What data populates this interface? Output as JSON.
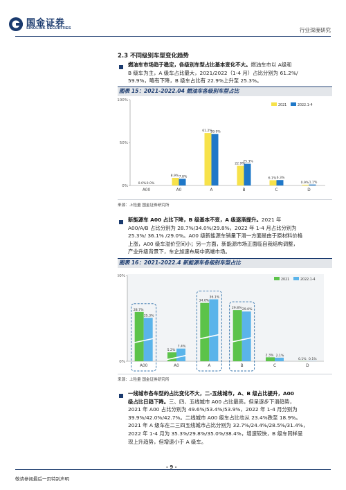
{
  "header": {
    "brand_cn": "国金证券",
    "brand_en": "SINOLINK SECURITIES",
    "report_type": "行业深度研究"
  },
  "section": {
    "title": "2.3 不同级别车型变化趋势"
  },
  "para1": {
    "bold": "燃油车市场趋于稳定，各级别车型占比基本变化不大。",
    "line1_rest": "燃油车市以 A级和",
    "line2": "B 级车为主，A 级车占比最大，2021/2022（1-4 月）占比分别为 61.2%/",
    "line3": "59.9%，略有下降，B 级车占比有 22.9%上升至 25.3%。"
  },
  "figure15": {
    "title": "图表 15：2021-2022.04 燃油车各级别车型占比",
    "source": "来源：上险量 国金证券研究所"
  },
  "para2": {
    "line1_bold": "新能源车 A00 占比下降，B 级基本不变，A 级逐渐提升。",
    "line1_rest": "2021 年",
    "line2": "A00/A/B 占比分别为 28.7%/34.0%/29.8%，2022 年 1-4 月占比分别为",
    "line3": "25.3%/ 36.1% /29.0%。A00 级新能源车销量下滑一方面是由于原材料价格",
    "line4": "上涨，A00 级车溢价空间小；另一方面，新能源市场正面临自我结构调整，",
    "line5": "产业升级背景下，车企加速布局中高端市场。"
  },
  "figure16": {
    "title": "图表 16：2021-2022.4 新能源车各级别车型占比",
    "source": "来源：上险量 国金证券研究所"
  },
  "para3": {
    "line1_bold": "一线城市各车型的占比变化不大，二-五线城市，A、B 级占比提升，A00",
    "line2_bold": "级占比日趋下降。",
    "line2_rest": "三、四、五线城市 A00 占比最高，但呈逐步下滑趋势，",
    "line3": "2021 年 A00 占比分别为 49.6%/53.4%/53.9%，2022 年 1-4 月分别为",
    "line4": "39.9%/42.0%/42.7%。二线城市 A00 级车占比也从 23.4%跌至 18.9%。",
    "line5": "2021 年 A 级车在二三四五线城市占比分别为 32.7%/24.4%/28.5%/31.4%，",
    "line6": "2022 年 1-4 月为 35.3%/29.8%/35.0%/38.4%，增速较快，B 级车同样呈",
    "line7": "现上升趋势，但增速小于 A 级车。"
  },
  "footer": {
    "disclaimer": "敬请参阅最后一页特别声明",
    "page": "- 9 -"
  },
  "chart_data": [
    {
      "type": "bar",
      "categories": [
        "A00",
        "A0",
        "A",
        "B",
        "C",
        "D"
      ],
      "series": [
        {
          "name": "2021",
          "values": [
            0.0,
            8.9,
            61.2,
            22.9,
            6.1,
            0.9
          ],
          "labels": [
            "0.0%",
            "8.9%",
            "61.2%",
            "22.9%",
            "6.1%",
            "0.9%"
          ]
        },
        {
          "name": "2022.1-4",
          "values": [
            0.0,
            7.8,
            59.9,
            25.3,
            6.3,
            1.1
          ],
          "labels": [
            "0.0%",
            "7.8%",
            "59.9%",
            "25.3%",
            "6.3%",
            "1.1%"
          ]
        }
      ],
      "yticks": [
        "0%",
        "50%",
        "100%"
      ],
      "ylim": [
        0,
        100
      ],
      "colors": {
        "2021": "#f7e24a",
        "2022.1-4": "#1f78c8"
      },
      "legend": "top-right",
      "grid": false
    },
    {
      "type": "bar",
      "categories": [
        "A00",
        "A0",
        "A",
        "B",
        "C",
        "D"
      ],
      "series": [
        {
          "name": "2021",
          "values": [
            28.7,
            5.2,
            34.0,
            29.8,
            2.3,
            0.1
          ],
          "labels": [
            "28.7%",
            "5.2%",
            "34.0%",
            "29.8%",
            "2.3%",
            "0.1%"
          ]
        },
        {
          "name": "2022.1-4",
          "values": [
            25.3,
            7.4,
            36.1,
            29.0,
            2.1,
            0.1
          ],
          "labels": [
            "25.3%",
            "7.4%",
            "36.1%",
            "29.0%",
            "2.1%",
            "0.1%"
          ]
        }
      ],
      "yticks": [
        "0%",
        "50%"
      ],
      "ylim": [
        0,
        50
      ],
      "colors": {
        "2021": "#5cc34a",
        "2022.1-4": "#5ab4ea"
      },
      "highlighted_categories": [
        "A00",
        "A",
        "B"
      ],
      "legend": "top-right",
      "grid": false
    }
  ]
}
